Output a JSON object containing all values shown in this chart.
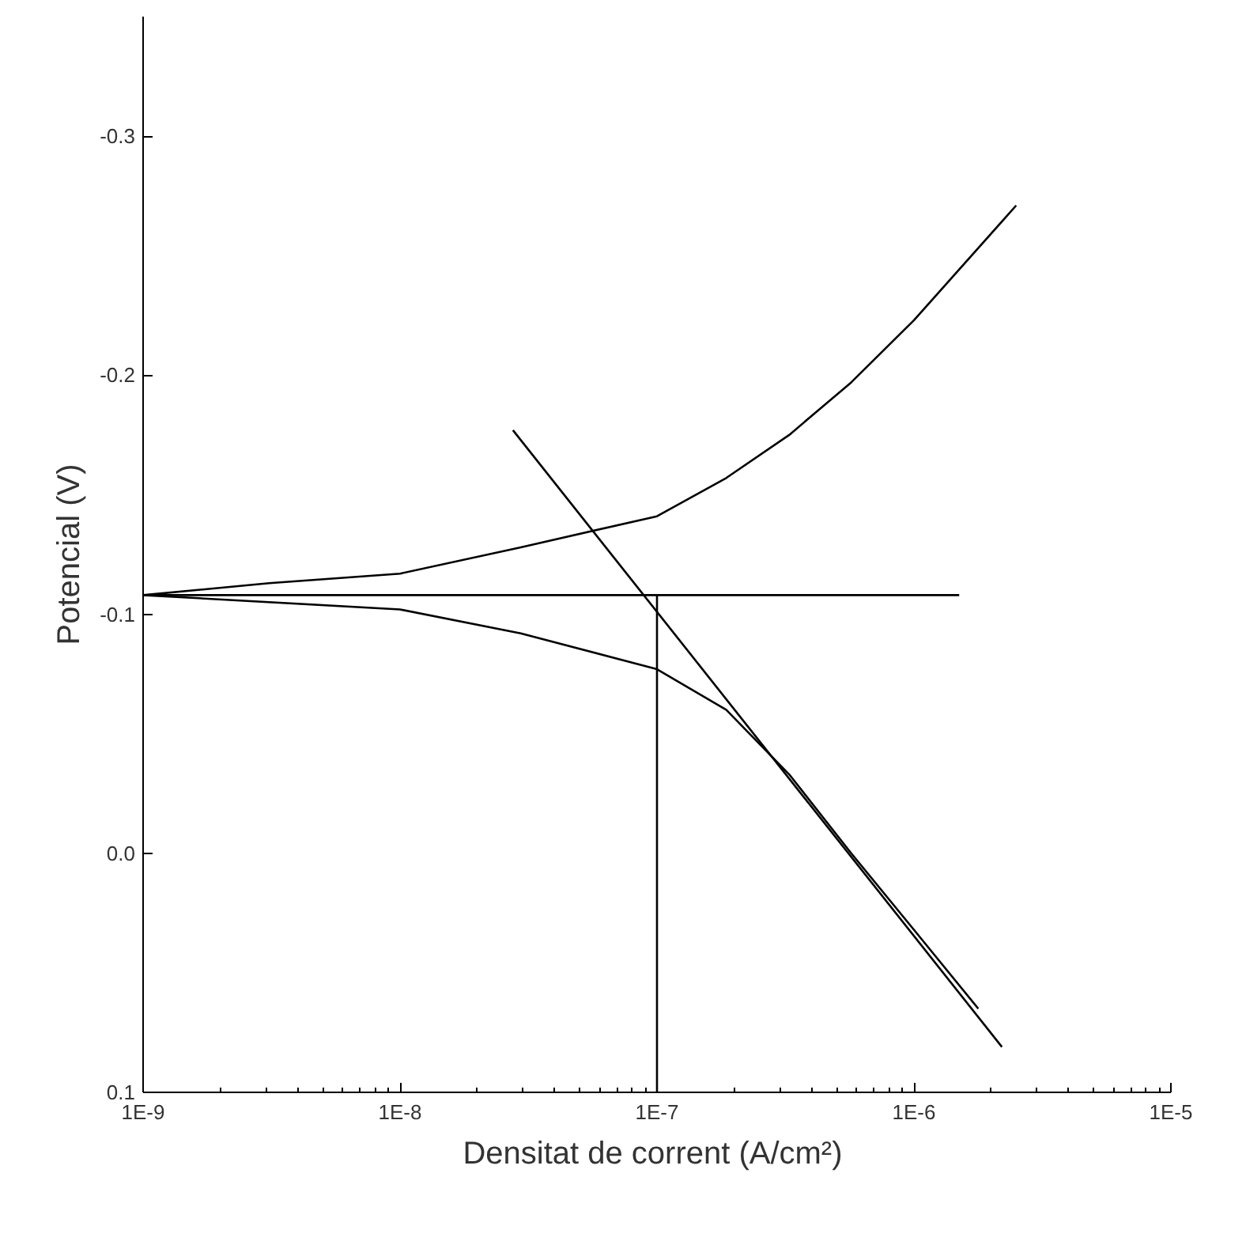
{
  "chart_data": {
    "type": "line",
    "xlabel": "Densitat de corrent  (A/cm²)",
    "ylabel": "Potencial (V)",
    "log": "x",
    "grid": false,
    "marker": "none",
    "line_style": "solid",
    "xlim": [
      1e-09,
      1e-05
    ],
    "ylim": [
      0.1,
      -0.35
    ],
    "xticks": [
      {
        "value": 1e-09,
        "label": "1E-9"
      },
      {
        "value": 1e-08,
        "label": "1E-8"
      },
      {
        "value": 1e-07,
        "label": "1E-7"
      },
      {
        "value": 1e-06,
        "label": "1E-6"
      },
      {
        "value": 1e-05,
        "label": "1E-5"
      }
    ],
    "yticks": [
      -0.3,
      -0.2,
      {
        "value": -0.1,
        "label": "-0.1"
      },
      {
        "value": 0,
        "label": "0.0"
      },
      0.1
    ],
    "series": [
      {
        "color": "#000000",
        "x": [
          1e-09,
          3.1e-09,
          1e-08,
          2.95e-08,
          1e-07,
          1.86e-07,
          3.27e-07,
          5.7e-07,
          1e-06,
          2.5e-06
        ],
        "values": [
          -0.108,
          -0.113,
          -0.117,
          -0.128,
          -0.141,
          -0.157,
          -0.175,
          -0.197,
          -0.223,
          -0.271
        ]
      },
      {
        "color": "#000000",
        "x": [
          1e-09,
          1e-08,
          2.95e-08,
          1e-07,
          1.86e-07,
          3.27e-07,
          5.7e-07,
          1e-06,
          1.78e-06
        ],
        "values": [
          -0.108,
          -0.102,
          -0.092,
          -0.077,
          -0.06,
          -0.033,
          0.0,
          0.032,
          0.065
        ]
      },
      {
        "color": "#000000",
        "x": [
          2.75e-08,
          2.2e-06
        ],
        "values": [
          -0.177,
          0.081
        ]
      },
      {
        "color": "#000000",
        "x": [
          1e-09,
          1.5e-06
        ],
        "values": [
          -0.108,
          -0.108
        ]
      },
      {
        "color": "#000000",
        "x": [
          1e-07,
          1e-07
        ],
        "values": [
          0.1,
          -0.108
        ]
      }
    ]
  }
}
